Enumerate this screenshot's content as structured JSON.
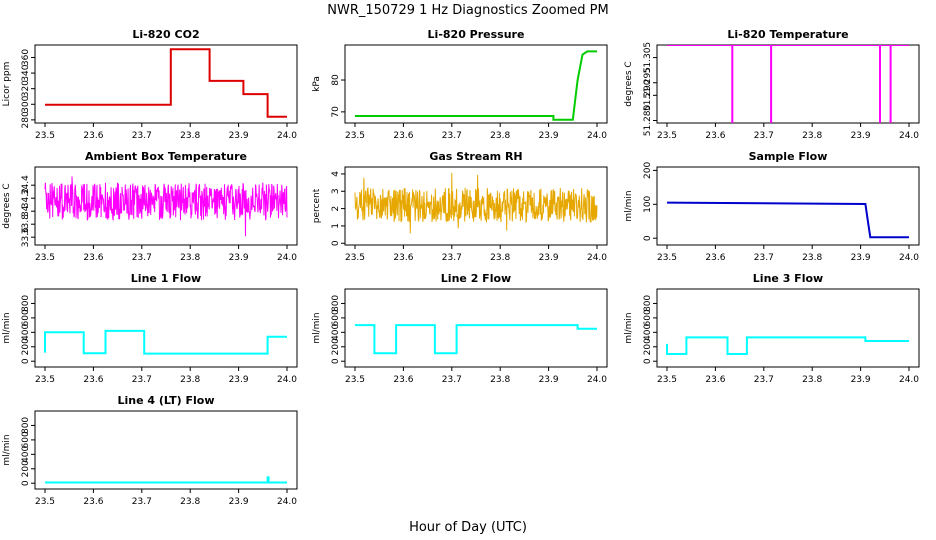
{
  "figure": {
    "title": "NWR_150729  1 Hz Diagnostics Zoomed PM",
    "xlabel": "Hour of Day (UTC)"
  },
  "chart_data": [
    {
      "type": "line",
      "title": "Li-820 CO2",
      "xlabel": "",
      "ylabel": "Licor ppm",
      "color": "#dd0000",
      "xlim": [
        23.5,
        24.0
      ],
      "ylim": [
        276,
        376
      ],
      "xticks": [
        23.5,
        23.6,
        23.7,
        23.8,
        23.9,
        24.0
      ],
      "yticks": [
        280,
        300,
        320,
        340,
        360
      ],
      "series": [
        {
          "x": [
            23.5,
            23.76,
            23.76,
            23.84,
            23.84,
            23.91,
            23.91,
            23.96,
            23.96,
            24.0
          ],
          "y": [
            299.5,
            299.5,
            370.5,
            370.5,
            330,
            330,
            313,
            313,
            284,
            284
          ]
        }
      ]
    },
    {
      "type": "line",
      "title": "Li-820 Pressure",
      "xlabel": "",
      "ylabel": "kPa",
      "color": "#00cc00",
      "xlim": [
        23.5,
        24.0
      ],
      "ylim": [
        66.5,
        91
      ],
      "xticks": [
        23.5,
        23.6,
        23.7,
        23.8,
        23.9,
        24.0
      ],
      "yticks": [
        70,
        80
      ],
      "series": [
        {
          "x": [
            23.5,
            23.91,
            23.91,
            23.95,
            23.96,
            23.97,
            23.98,
            24.0
          ],
          "y": [
            68.7,
            68.7,
            67.5,
            67.5,
            80,
            88,
            89,
            89
          ]
        }
      ]
    },
    {
      "type": "line",
      "title": "Li-820 Temperature",
      "xlabel": "",
      "ylabel": "degrees C",
      "color": "#ff00ff",
      "xlim": [
        23.5,
        24.0
      ],
      "ylim": [
        51.279,
        51.31
      ],
      "xticks": [
        23.5,
        23.6,
        23.7,
        23.8,
        23.9,
        24.0
      ],
      "yticks": [
        "51.280",
        "51.290",
        "51.295",
        "51.305"
      ],
      "series": [
        {
          "x": [
            23.5,
            23.635,
            23.635,
            23.635,
            23.715,
            23.715,
            23.715,
            23.94,
            23.94,
            23.94,
            23.962,
            23.962,
            23.962,
            24.0
          ],
          "y": [
            51.31,
            51.31,
            51.279,
            51.31,
            51.31,
            51.279,
            51.31,
            51.31,
            51.279,
            51.31,
            51.31,
            51.279,
            51.31,
            51.31
          ]
        }
      ]
    },
    {
      "type": "line",
      "title": "Ambient Box Temperature",
      "xlabel": "",
      "ylabel": "degrees C",
      "color": "#ff00ff",
      "xlim": [
        23.5,
        24.0
      ],
      "ylim": [
        33.48,
        34.68
      ],
      "xticks": [
        23.5,
        23.6,
        23.7,
        23.8,
        23.9,
        24.0
      ],
      "yticks": [
        33.6,
        33.8,
        34.0,
        34.2,
        34.4
      ],
      "series": [
        {
          "x": [
            23.5,
            24.0
          ],
          "y": [
            34.15,
            34.15
          ],
          "noise_band": [
            33.86,
            34.44
          ]
        }
      ]
    },
    {
      "type": "line",
      "title": "Gas Stream RH",
      "xlabel": "",
      "ylabel": "percent",
      "color": "#e6a800",
      "xlim": [
        23.5,
        24.0
      ],
      "ylim": [
        -0.1,
        4.4
      ],
      "xticks": [
        23.5,
        23.6,
        23.7,
        23.8,
        23.9,
        24.0
      ],
      "yticks": [
        0,
        1,
        2,
        3,
        4
      ],
      "series": [
        {
          "x": [
            23.5,
            24.0
          ],
          "y": [
            2.2,
            2.2
          ],
          "noise_band": [
            1.2,
            3.2
          ]
        }
      ]
    },
    {
      "type": "line",
      "title": "Sample Flow",
      "xlabel": "",
      "ylabel": "ml/min",
      "color": "#0000cc",
      "xlim": [
        23.5,
        24.0
      ],
      "ylim": [
        -20,
        210
      ],
      "xticks": [
        23.5,
        23.6,
        23.7,
        23.8,
        23.9,
        24.0
      ],
      "yticks": [
        0,
        100,
        200
      ],
      "series": [
        {
          "x": [
            23.5,
            23.91,
            23.915,
            23.92,
            24.0
          ],
          "y": [
            105,
            101,
            50,
            3,
            3
          ]
        }
      ]
    },
    {
      "type": "line",
      "title": "Line 1 Flow",
      "xlabel": "",
      "ylabel": "ml/min",
      "color": "#00ffff",
      "xlim": [
        23.5,
        24.0
      ],
      "ylim": [
        -80,
        1000
      ],
      "xticks": [
        23.5,
        23.6,
        23.7,
        23.8,
        23.9,
        24.0
      ],
      "yticks": [
        0,
        200,
        400,
        600,
        800
      ],
      "series": [
        {
          "x": [
            23.5,
            23.5,
            23.58,
            23.58,
            23.625,
            23.625,
            23.705,
            23.705,
            23.96,
            23.96,
            24.0
          ],
          "y": [
            120,
            400,
            400,
            110,
            110,
            420,
            420,
            105,
            105,
            340,
            340
          ]
        }
      ]
    },
    {
      "type": "line",
      "title": "Line 2 Flow",
      "xlabel": "",
      "ylabel": "ml/min",
      "color": "#00ffff",
      "xlim": [
        23.5,
        24.0
      ],
      "ylim": [
        -80,
        1000
      ],
      "xticks": [
        23.5,
        23.6,
        23.7,
        23.8,
        23.9,
        24.0
      ],
      "yticks": [
        0,
        200,
        400,
        600,
        800
      ],
      "series": [
        {
          "x": [
            23.5,
            23.54,
            23.54,
            23.585,
            23.585,
            23.665,
            23.665,
            23.71,
            23.71,
            23.96,
            23.96,
            24.0
          ],
          "y": [
            500,
            500,
            110,
            110,
            500,
            500,
            110,
            110,
            500,
            500,
            450,
            450
          ]
        }
      ]
    },
    {
      "type": "line",
      "title": "Line 3 Flow",
      "xlabel": "",
      "ylabel": "ml/min",
      "color": "#00ffff",
      "xlim": [
        23.5,
        24.0
      ],
      "ylim": [
        -80,
        1000
      ],
      "xticks": [
        23.5,
        23.6,
        23.7,
        23.8,
        23.9,
        24.0
      ],
      "yticks": [
        0,
        200,
        400,
        600,
        800
      ],
      "series": [
        {
          "x": [
            23.5,
            23.5,
            23.54,
            23.54,
            23.625,
            23.625,
            23.665,
            23.665,
            23.91,
            23.91,
            24.0
          ],
          "y": [
            240,
            100,
            100,
            330,
            330,
            100,
            100,
            330,
            330,
            280,
            280
          ]
        }
      ]
    },
    {
      "type": "line",
      "title": "Line 4 (LT) Flow",
      "xlabel": "",
      "ylabel": "ml/min",
      "color": "#00ffff",
      "xlim": [
        23.5,
        24.0
      ],
      "ylim": [
        -80,
        1000
      ],
      "xticks": [
        23.5,
        23.6,
        23.7,
        23.8,
        23.9,
        24.0
      ],
      "yticks": [
        0,
        200,
        400,
        600,
        800
      ],
      "series": [
        {
          "x": [
            23.5,
            23.96,
            23.96,
            23.962,
            23.962,
            24.0
          ],
          "y": [
            10,
            10,
            80,
            80,
            10,
            10
          ]
        }
      ]
    }
  ]
}
